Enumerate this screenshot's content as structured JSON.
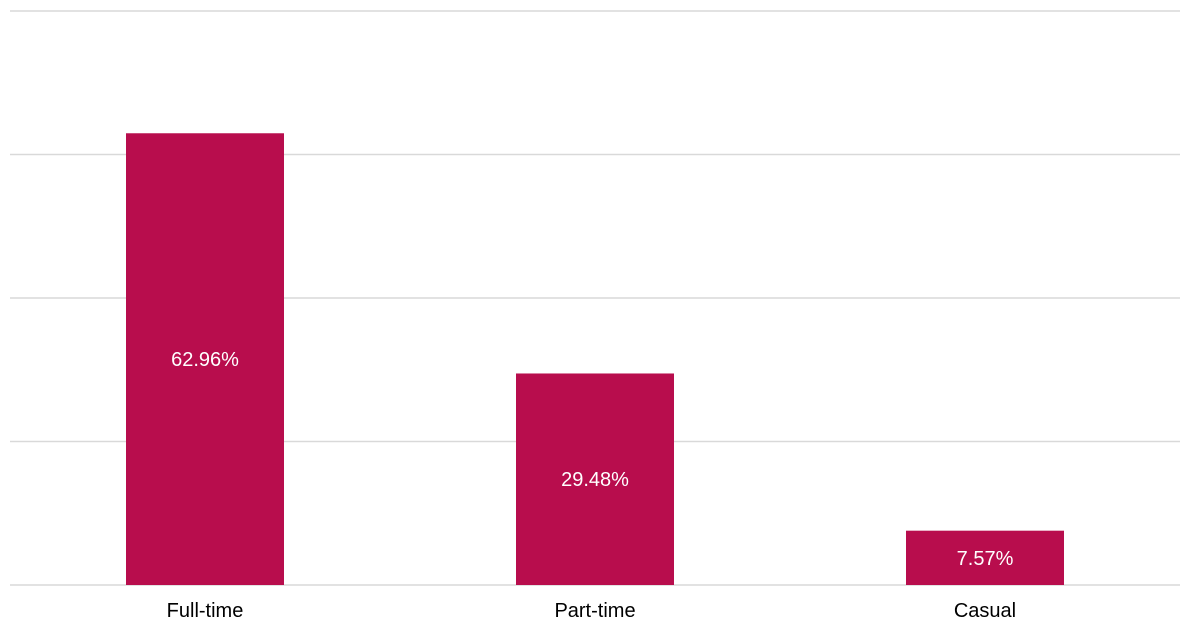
{
  "chart_data": {
    "type": "bar",
    "title": "",
    "xlabel": "",
    "ylabel": "",
    "categories": [
      "Full-time",
      "Part-time",
      "Casual"
    ],
    "values": [
      62.96,
      29.48,
      7.57
    ],
    "value_labels": [
      "62.96%",
      "29.48%",
      "7.57%"
    ],
    "unit": "%",
    "ylim": [
      0,
      80
    ],
    "gridlines": [
      0,
      20,
      40,
      60,
      80
    ],
    "grid": true,
    "legend": "none",
    "y_tick_labels_visible": false
  },
  "colors": {
    "bar": "#b80d4d",
    "grid": "#d9d9d9",
    "bar_label": "#ffffff",
    "tick_label": "#000000"
  }
}
